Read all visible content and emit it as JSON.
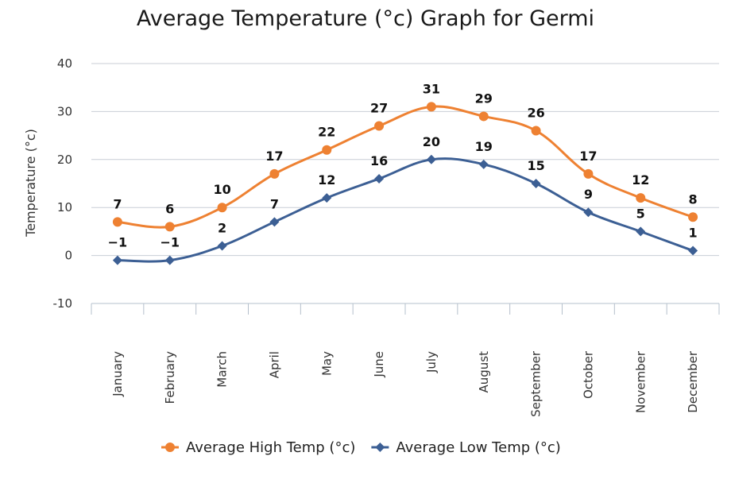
{
  "chart_data": {
    "type": "line",
    "title": "Average Temperature (°c) Graph for Germi",
    "xlabel": "",
    "ylabel": "Temperature (°c)",
    "ylim": [
      -10,
      40
    ],
    "yticks": [
      -10,
      0,
      10,
      20,
      30,
      40
    ],
    "grid": true,
    "legend_position": "bottom",
    "categories": [
      "January",
      "February",
      "March",
      "April",
      "May",
      "June",
      "July",
      "August",
      "September",
      "October",
      "November",
      "December"
    ],
    "series": [
      {
        "name": "Average High Temp (°c)",
        "values": [
          7,
          6,
          10,
          17,
          22,
          27,
          31,
          29,
          26,
          17,
          12,
          8
        ],
        "labels": [
          "7",
          "6",
          "10",
          "17",
          "22",
          "27",
          "31",
          "29",
          "26",
          "17",
          "12",
          "8"
        ],
        "color": "#ee8132",
        "marker": "circle"
      },
      {
        "name": "Average Low Temp (°c)",
        "values": [
          -1,
          -1,
          2,
          7,
          12,
          16,
          20,
          19,
          15,
          9,
          5,
          1
        ],
        "labels": [
          "−1",
          "−1",
          "2",
          "7",
          "12",
          "16",
          "20",
          "19",
          "15",
          "9",
          "5",
          "1"
        ],
        "color": "#3c5f94",
        "marker": "diamond"
      }
    ]
  }
}
